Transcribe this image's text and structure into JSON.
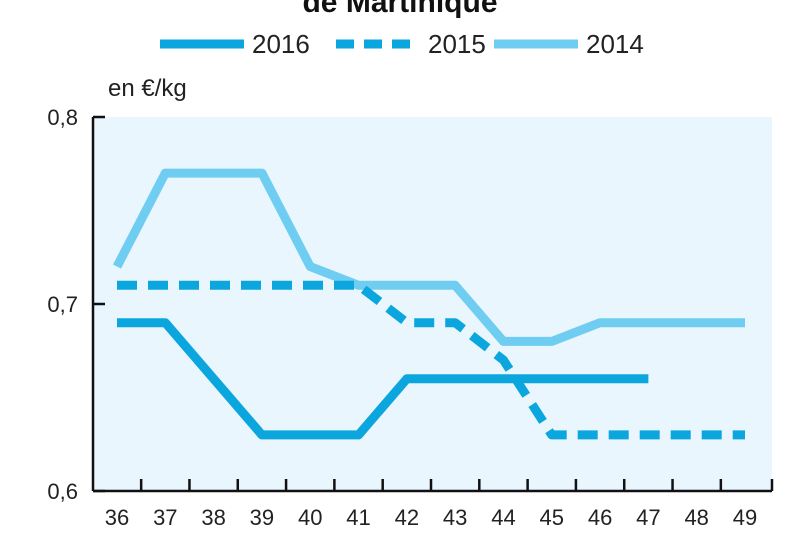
{
  "chart_data": {
    "type": "line",
    "title": "de Martinique",
    "ylabel": "en €/kg",
    "caption": "",
    "x": [
      36,
      37,
      38,
      39,
      40,
      41,
      42,
      43,
      44,
      45,
      46,
      47,
      48,
      49
    ],
    "x_tick_labels": [
      "36",
      "37",
      "38",
      "39",
      "40",
      "41",
      "42",
      "43",
      "44",
      "45",
      "46",
      "47",
      "48",
      "49"
    ],
    "ylim": [
      0.6,
      0.8
    ],
    "y_ticks": [
      0.6,
      0.7,
      0.8
    ],
    "y_tick_labels": [
      "0,6",
      "0,7",
      "0,8"
    ],
    "grid": false,
    "legend_position": "top",
    "series": [
      {
        "name": "2016",
        "style": "solid",
        "color": "#0aa6dd",
        "x": [
          36,
          37,
          38,
          39,
          40,
          41,
          42,
          43,
          44,
          45,
          46,
          47
        ],
        "values": [
          0.69,
          0.69,
          0.66,
          0.63,
          0.63,
          0.63,
          0.66,
          0.66,
          0.66,
          0.66,
          0.66,
          0.66
        ]
      },
      {
        "name": "2015",
        "style": "dashed",
        "color": "#0aa6dd",
        "x": [
          36,
          37,
          38,
          39,
          40,
          41,
          42,
          43,
          44,
          45,
          46,
          47,
          48,
          49
        ],
        "values": [
          0.71,
          0.71,
          0.71,
          0.71,
          0.71,
          0.71,
          0.69,
          0.69,
          0.67,
          0.63,
          0.63,
          0.63,
          0.63,
          0.63
        ]
      },
      {
        "name": "2014",
        "style": "solid",
        "color": "#6fcdf2",
        "x": [
          36,
          37,
          38,
          39,
          40,
          41,
          42,
          43,
          44,
          45,
          46,
          47,
          48,
          49
        ],
        "values": [
          0.72,
          0.77,
          0.77,
          0.77,
          0.72,
          0.71,
          0.71,
          0.71,
          0.68,
          0.68,
          0.69,
          0.69,
          0.69,
          0.69
        ]
      }
    ]
  },
  "colors": {
    "plot_background": "#eaf6fd",
    "axis": "#111111"
  }
}
